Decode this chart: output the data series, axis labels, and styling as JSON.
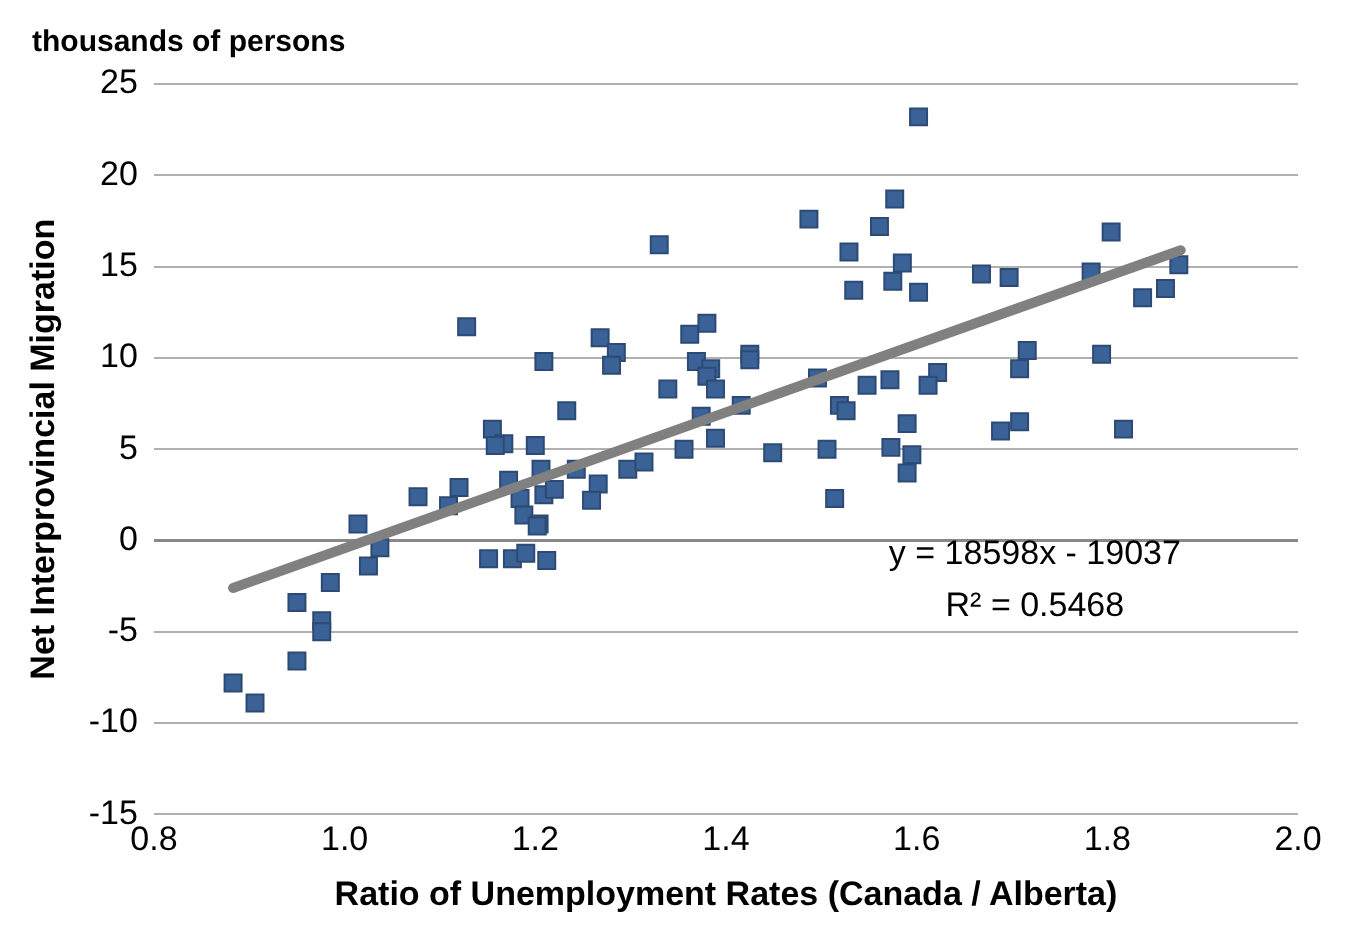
{
  "chart_data": {
    "type": "scatter",
    "title": "thousands of persons",
    "xlabel": "Ratio of Unemployment Rates (Canada / Alberta)",
    "ylabel": "Net Interprovincial Migration",
    "xlim": [
      0.8,
      2.0
    ],
    "xticks": [
      {
        "value": 0.8,
        "label": "0.8"
      },
      {
        "value": 1.0,
        "label": "1.0"
      },
      {
        "value": 1.2,
        "label": "1.2"
      },
      {
        "value": 1.4,
        "label": "1.4"
      },
      {
        "value": 1.6,
        "label": "1.6"
      },
      {
        "value": 1.8,
        "label": "1.8"
      },
      {
        "value": 2.0,
        "label": "2.0"
      }
    ],
    "ylim": [
      -15,
      25
    ],
    "yticks": [
      -15,
      -10,
      -5,
      0,
      5,
      10,
      15,
      20,
      25
    ],
    "grid": "y",
    "legend": false,
    "annotations": [
      "y = 18598x - 19037",
      "R² = 0.5468"
    ],
    "series": [
      {
        "marker": "square",
        "color": "#3a6297",
        "x": [
          0.883,
          0.906,
          0.95,
          0.976,
          0.976,
          0.95,
          0.985,
          1.014,
          1.025,
          1.037,
          1.077,
          1.109,
          1.12,
          1.128,
          1.151,
          1.176,
          1.19,
          1.212,
          1.155,
          1.167,
          1.158,
          1.2,
          1.172,
          1.209,
          1.206,
          1.184,
          1.188,
          1.204,
          1.209,
          1.487,
          1.33,
          1.268,
          1.285,
          1.28,
          1.362,
          1.38,
          1.369,
          1.384,
          1.38,
          1.389,
          1.425,
          1.425,
          1.339,
          1.233,
          1.22,
          1.202,
          1.243,
          1.266,
          1.259,
          1.297,
          1.314,
          1.356,
          1.374,
          1.389,
          1.416,
          1.449,
          1.496,
          1.506,
          1.514,
          1.602,
          1.577,
          1.561,
          1.529,
          1.585,
          1.575,
          1.534,
          1.602,
          1.668,
          1.697,
          1.804,
          1.783,
          1.875,
          1.861,
          1.837,
          1.716,
          1.708,
          1.794,
          1.622,
          1.612,
          1.572,
          1.548,
          1.519,
          1.526,
          1.59,
          1.573,
          1.595,
          1.59,
          1.688,
          1.708,
          1.817
        ],
        "values": [
          -7.8,
          -8.9,
          -3.4,
          -4.4,
          -5.0,
          -6.6,
          -2.3,
          0.9,
          -1.4,
          -0.4,
          2.4,
          1.9,
          2.9,
          11.7,
          -1.0,
          -1.0,
          -0.7,
          -1.1,
          6.1,
          5.3,
          5.2,
          5.2,
          3.3,
          9.8,
          3.9,
          2.3,
          1.4,
          0.9,
          2.5,
          17.6,
          16.2,
          11.1,
          10.3,
          9.6,
          11.3,
          11.9,
          9.8,
          9.4,
          9.0,
          8.3,
          10.2,
          9.9,
          8.3,
          7.1,
          2.8,
          0.8,
          3.9,
          3.1,
          2.2,
          3.9,
          4.3,
          5.0,
          6.8,
          5.6,
          7.4,
          4.8,
          8.9,
          5.0,
          2.3,
          23.2,
          18.7,
          17.2,
          15.8,
          15.2,
          14.2,
          13.7,
          13.6,
          14.6,
          14.4,
          16.9,
          14.7,
          15.1,
          13.8,
          13.3,
          10.4,
          9.4,
          10.2,
          9.2,
          8.5,
          8.8,
          8.5,
          7.4,
          7.1,
          6.4,
          5.1,
          4.7,
          3.7,
          6.0,
          6.5,
          6.1
        ]
      },
      {
        "type": "line",
        "marker": "none",
        "color": "#808080",
        "x": [
          0.883,
          1.877
        ],
        "values": [
          -2.6,
          15.9
        ]
      }
    ]
  }
}
